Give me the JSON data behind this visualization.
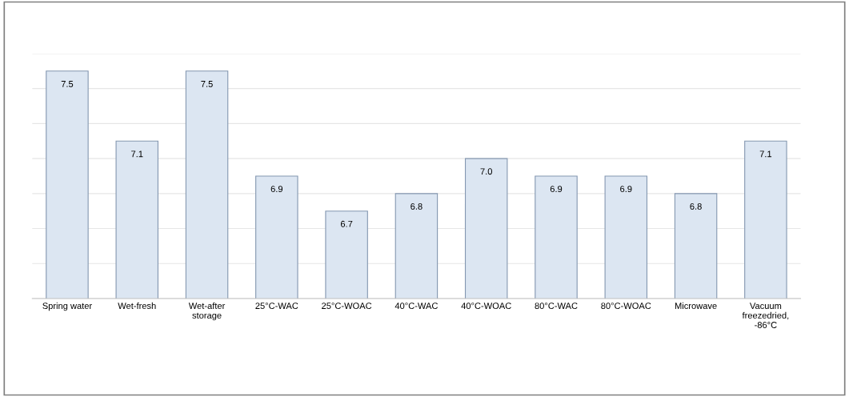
{
  "chart_data": {
    "type": "bar",
    "categories": [
      "Spring water",
      "Wet-fresh",
      "Wet-after\nstorage",
      "25°C-WAC",
      "25°C-WOAC",
      "40°C-WAC",
      "40°C-WOAC",
      "80°C-WAC",
      "80°C-WOAC",
      "Microwave",
      "Vacuum\nfreezedried,\n-86°C"
    ],
    "values": [
      7.5,
      7.1,
      7.5,
      6.9,
      6.7,
      6.8,
      7.0,
      6.9,
      6.9,
      6.8,
      7.1
    ],
    "value_labels": [
      "7.5",
      "7.1",
      "7.5",
      "6.9",
      "6.7",
      "6.8",
      "7.0",
      "6.9",
      "6.9",
      "6.8",
      "7.1"
    ],
    "color": "#dce6f2",
    "ylim": [
      6.2,
      7.6
    ],
    "yticks": [
      {
        "value": 6.2,
        "label": null
      },
      {
        "value": 6.4,
        "label": null
      },
      {
        "value": 6.6,
        "label": null
      },
      {
        "value": 6.8,
        "label": null
      },
      {
        "value": 7.0,
        "label": null
      },
      {
        "value": 7.2,
        "label": null
      },
      {
        "value": 7.4,
        "label": null
      },
      {
        "value": 7.6,
        "label": null
      }
    ],
    "grid": "y",
    "tick_labels": "x"
  }
}
